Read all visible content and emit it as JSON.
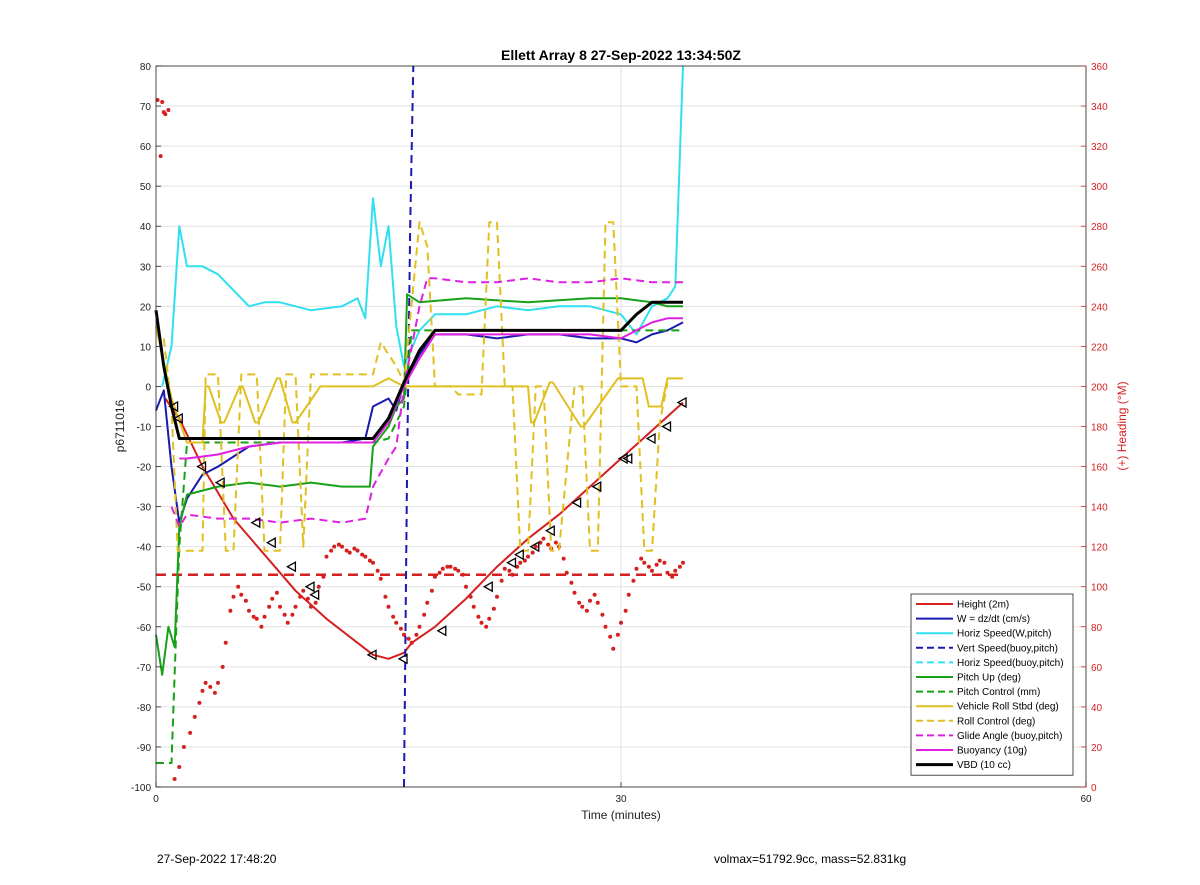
{
  "chart_data": {
    "type": "line",
    "title": "Ellett Array 8 27-Sep-2022 13:34:50Z",
    "xlabel": "Time (minutes)",
    "ylabel": "p6711016",
    "ylabel_right": "(+) Heading (°M)",
    "xlim": [
      0,
      60
    ],
    "ylim": [
      -100,
      80
    ],
    "ylim_right": [
      0,
      360
    ],
    "xticks": [
      0,
      30,
      60
    ],
    "yticks": [
      -100,
      -90,
      -80,
      -70,
      -60,
      -50,
      -40,
      -30,
      -20,
      -10,
      0,
      10,
      20,
      30,
      40,
      50,
      60,
      70,
      80
    ],
    "yticks_right": [
      0,
      20,
      40,
      60,
      80,
      100,
      120,
      140,
      160,
      180,
      200,
      220,
      240,
      260,
      280,
      300,
      320,
      340,
      360
    ],
    "grid": true,
    "legend_position": "bottom-right",
    "series": [
      {
        "name": "Height (2m)",
        "color": "#d62020",
        "style": "solid",
        "width": 2,
        "x": [
          0.6,
          1.5,
          3,
          5,
          7,
          9,
          11,
          13,
          14,
          15,
          16,
          16.5,
          18,
          20,
          22,
          24,
          26,
          28,
          30,
          32,
          34
        ],
        "y": [
          -3,
          -8,
          -20,
          -33,
          -42,
          -51,
          -58,
          -64,
          -67,
          -68,
          -66.5,
          -64,
          -60,
          -53,
          -45,
          -38,
          -32,
          -25,
          -18,
          -11,
          -4
        ]
      },
      {
        "name": "W = dz/dt (cm/s)",
        "color": "#1a1ab0",
        "style": "solid",
        "width": 2,
        "x": [
          0,
          0.5,
          1,
          1.5,
          2,
          3,
          4,
          6,
          8,
          10,
          12,
          13.5,
          14,
          15,
          15.5,
          16,
          17,
          18,
          20,
          22,
          24,
          26,
          28,
          30,
          31,
          32,
          33,
          34
        ],
        "y": [
          -6,
          -1,
          -20,
          -34,
          -28,
          -22,
          -20,
          -15,
          -14,
          -14,
          -14,
          -13,
          -5,
          -3,
          -6,
          1,
          8,
          13,
          13,
          12,
          13,
          13,
          12,
          12,
          11,
          13,
          14,
          16
        ]
      },
      {
        "name": "Horiz Speed(W,pitch)",
        "color": "#30e0f0",
        "style": "solid",
        "width": 2,
        "x": [
          0.4,
          1,
          1.5,
          2,
          3,
          4,
          5,
          6,
          7,
          8,
          10,
          12,
          13,
          13.5,
          14,
          14.5,
          15,
          15.5,
          16,
          17,
          18,
          20,
          22,
          24,
          26,
          28,
          30,
          31,
          32,
          33,
          33.5,
          34
        ],
        "y": [
          0,
          10,
          40,
          30,
          30,
          28,
          24,
          20,
          21,
          21,
          19,
          20,
          22,
          17,
          47,
          30,
          40,
          15,
          5,
          14,
          18,
          18,
          20,
          19,
          20,
          20,
          18,
          13,
          20,
          22,
          25,
          80
        ]
      },
      {
        "name": "Vert Speed(buoy,pitch)",
        "color": "#1a1ab0",
        "style": "dashed",
        "width": 2,
        "x": [
          16,
          16.2,
          16.4,
          16.6
        ],
        "y": [
          -100,
          -20,
          40,
          80
        ]
      },
      {
        "name": "Horiz Speed(buoy,pitch)",
        "color": "#30e0f0",
        "style": "dashed",
        "width": 2,
        "x": [],
        "y": []
      },
      {
        "name": "Pitch Up (deg)",
        "color": "#18a018",
        "style": "solid",
        "width": 2,
        "x": [
          0,
          0.4,
          0.8,
          1.2,
          1.5,
          2,
          4,
          6,
          8,
          10,
          12,
          13.8,
          14,
          15,
          15.5,
          16,
          16.2,
          17,
          20,
          24,
          28,
          30,
          32,
          33,
          34
        ],
        "y": [
          -62,
          -72,
          -60,
          -65,
          -35,
          -27,
          -25,
          -24,
          -25,
          -24,
          -25,
          -25,
          -15,
          -10,
          -5,
          -3,
          23,
          21,
          22,
          21,
          22,
          22,
          21,
          20,
          20
        ]
      },
      {
        "name": "Pitch Control (mm)",
        "color": "#18a018",
        "style": "dashed",
        "width": 2,
        "x": [
          0,
          1,
          1.2,
          1.5,
          2,
          6,
          10,
          14,
          15,
          16,
          16.5,
          20,
          24,
          28,
          30,
          32,
          34
        ],
        "y": [
          -94,
          -94,
          -72,
          -40,
          -14,
          -14,
          -14,
          -14,
          -13,
          -5,
          14,
          14,
          14,
          14,
          14,
          14,
          14
        ]
      },
      {
        "name": "Vehicle Roll Stbd (deg)",
        "color": "#e0c020",
        "style": "solid",
        "width": 2,
        "x": [
          0,
          1,
          2,
          3,
          3.2,
          3.4,
          4.2,
          4.4,
          5.4,
          5.6,
          6.4,
          6.6,
          7.8,
          8,
          8.8,
          9,
          10.6,
          11,
          14,
          15,
          16,
          18,
          20,
          22,
          24,
          24.2,
          24.4,
          25.4,
          25.6,
          27.4,
          27.6,
          29.8,
          30,
          31.4,
          31.8,
          32.6,
          33,
          34
        ],
        "y": [
          15,
          -3,
          -14,
          -14,
          0,
          0,
          -9,
          -9,
          0,
          0,
          -9,
          -9,
          2,
          2,
          -9,
          -9,
          0,
          0,
          0,
          2,
          0,
          0,
          0,
          0,
          0,
          -9,
          -9,
          1,
          1,
          -10,
          -10,
          2,
          2,
          2,
          -5,
          -5,
          2,
          2
        ]
      },
      {
        "name": "Roll Control (deg)",
        "color": "#e0c020",
        "style": "dashed",
        "width": 2,
        "x": [
          0.5,
          1,
          1.4,
          2,
          3,
          3.2,
          4,
          4.5,
          5,
          5.5,
          6.5,
          7,
          8,
          8.4,
          9,
          9.5,
          10,
          14,
          14.5,
          15.5,
          16,
          17,
          17.5,
          18,
          19,
          19.5,
          21,
          21.5,
          22,
          22.5,
          23,
          23.5,
          24,
          24.5,
          25,
          25.5,
          26,
          27,
          27.5,
          28,
          28.5,
          29,
          29.5,
          30,
          31,
          31.5,
          32,
          32.5,
          33
        ],
        "y": [
          12,
          -5,
          -41,
          -41,
          -41,
          3,
          3,
          -41,
          -41,
          3,
          3,
          -41,
          -41,
          3,
          3,
          -40,
          3,
          3,
          11,
          5,
          1,
          41,
          35,
          0,
          0,
          -2,
          -2,
          41,
          41,
          0,
          0,
          -41,
          -41,
          0,
          0,
          -41,
          -41,
          0,
          0,
          -41,
          -41,
          41,
          41,
          0,
          0,
          -41,
          -41,
          -9,
          1
        ]
      },
      {
        "name": "Glide Angle (buoy,pitch)",
        "color": "#e020e0",
        "style": "dashed",
        "width": 2,
        "x": [
          1,
          1.5,
          2,
          4,
          6,
          8,
          10,
          12,
          13.5,
          14,
          15,
          15.5,
          16,
          16.5,
          17,
          17.5,
          18,
          20,
          22,
          24,
          26,
          28,
          30,
          32,
          34
        ],
        "y": [
          -30,
          -35,
          -32,
          -33,
          -33,
          -34,
          -33,
          -34,
          -33,
          -25,
          -18,
          -15,
          0,
          10,
          20,
          27,
          27,
          26,
          26,
          27,
          26,
          26,
          27,
          26,
          26
        ]
      },
      {
        "name": "Buoyancy (10g)",
        "color": "#e020e0",
        "style": "solid",
        "width": 2,
        "x": [
          1.5,
          2,
          4,
          6,
          8,
          10,
          12,
          14,
          15,
          16,
          17,
          18,
          20,
          24,
          28,
          30,
          32,
          33,
          34
        ],
        "y": [
          -18,
          -18,
          -17,
          -15,
          -14,
          -14,
          -14,
          -14,
          -9,
          0,
          7,
          13,
          13,
          13,
          13,
          12,
          16,
          17,
          17
        ]
      },
      {
        "name": "VBD (10 cc)",
        "color": "#000000",
        "style": "solid",
        "width": 3,
        "x": [
          0,
          0.5,
          1,
          1.5,
          2,
          6,
          10,
          14,
          15,
          16,
          17,
          18,
          20,
          24,
          28,
          30,
          31,
          32,
          33,
          34
        ],
        "y": [
          19,
          5,
          -5,
          -13,
          -13,
          -13,
          -13,
          -13,
          -8,
          1,
          9,
          14,
          14,
          14,
          14,
          14,
          18,
          21,
          21,
          21
        ]
      }
    ],
    "height_markers": {
      "x": [
        1.2,
        1.5,
        3,
        4.2,
        6.5,
        7.5,
        8.8,
        10,
        10.3,
        14,
        16,
        18.5,
        21.5,
        23,
        23.5,
        24.5,
        25.5,
        27.2,
        28.5,
        30.2,
        30.5,
        32,
        33,
        34
      ],
      "y": [
        -5,
        -8,
        -20,
        -24,
        -34,
        -39,
        -45,
        -50,
        -52,
        -67,
        -68,
        -61,
        -50,
        -44,
        -42,
        -40,
        -36,
        -29,
        -25,
        -18,
        -18,
        -13,
        -10,
        -4
      ]
    },
    "heading_reference": {
      "name": "",
      "color": "#d62020",
      "style": "dashed",
      "value": 106
    },
    "heading_points": {
      "color": "#d62020",
      "x": [
        0.1,
        0.3,
        0.4,
        0.5,
        0.6,
        0.8,
        1.2,
        1.5,
        1.8,
        2.2,
        2.5,
        2.8,
        3.0,
        3.2,
        3.5,
        3.8,
        4.0,
        4.3,
        4.5,
        4.8,
        5.0,
        5.3,
        5.5,
        5.8,
        6.0,
        6.3,
        6.5,
        6.8,
        7.0,
        7.3,
        7.5,
        7.8,
        8.0,
        8.3,
        8.5,
        8.8,
        9.0,
        9.3,
        9.5,
        9.8,
        10.0,
        10.3,
        10.5,
        10.8,
        11.0,
        11.3,
        11.5,
        11.8,
        12.0,
        12.3,
        12.5,
        12.8,
        13.0,
        13.3,
        13.5,
        13.8,
        14.0,
        14.3,
        14.5,
        14.8,
        15.0,
        15.3,
        15.5,
        15.8,
        16.0,
        16.3,
        16.5,
        16.8,
        17.0,
        17.3,
        17.5,
        17.8,
        18.0,
        18.3,
        18.5,
        18.8,
        19.0,
        19.3,
        19.5,
        19.8,
        20.0,
        20.3,
        20.5,
        20.8,
        21.0,
        21.3,
        21.5,
        21.8,
        22.0,
        22.3,
        22.5,
        22.8,
        23.0,
        23.3,
        23.5,
        23.8,
        24.0,
        24.3,
        24.5,
        24.8,
        25.0,
        25.3,
        25.5,
        25.8,
        26.0,
        26.3,
        26.5,
        26.8,
        27.0,
        27.3,
        27.5,
        27.8,
        28.0,
        28.3,
        28.5,
        28.8,
        29.0,
        29.3,
        29.5,
        29.8,
        30.0,
        30.3,
        30.5,
        30.8,
        31.0,
        31.3,
        31.5,
        31.8,
        32.0,
        32.3,
        32.5,
        32.8,
        33.0,
        33.3,
        33.5,
        33.8,
        34.0
      ],
      "y": [
        343,
        315,
        342,
        337,
        336,
        338,
        4,
        10,
        20,
        27,
        35,
        42,
        48,
        52,
        50,
        47,
        52,
        60,
        72,
        88,
        95,
        100,
        96,
        93,
        88,
        85,
        84,
        80,
        85,
        90,
        94,
        97,
        90,
        86,
        82,
        86,
        90,
        95,
        98,
        94,
        90,
        92,
        100,
        105,
        115,
        118,
        120,
        121,
        120,
        118,
        117,
        119,
        118,
        116,
        115,
        113,
        112,
        108,
        104,
        95,
        90,
        85,
        82,
        79,
        76,
        74,
        72,
        76,
        80,
        86,
        92,
        98,
        105,
        107,
        109,
        110,
        110,
        109,
        108,
        106,
        100,
        95,
        90,
        85,
        82,
        80,
        84,
        89,
        95,
        103,
        109,
        108,
        106,
        110,
        112,
        113,
        115,
        117,
        120,
        122,
        124,
        121,
        119,
        122,
        120,
        114,
        107,
        102,
        97,
        92,
        90,
        88,
        93,
        96,
        92,
        86,
        80,
        75,
        69,
        76,
        82,
        88,
        96,
        103,
        109,
        114,
        112,
        110,
        108,
        111,
        113,
        112,
        107,
        105,
        108,
        110,
        112
      ]
    }
  },
  "footer": {
    "left": "27-Sep-2022 17:48:20",
    "right": "volmax=51792.9cc, mass=52.831kg"
  }
}
